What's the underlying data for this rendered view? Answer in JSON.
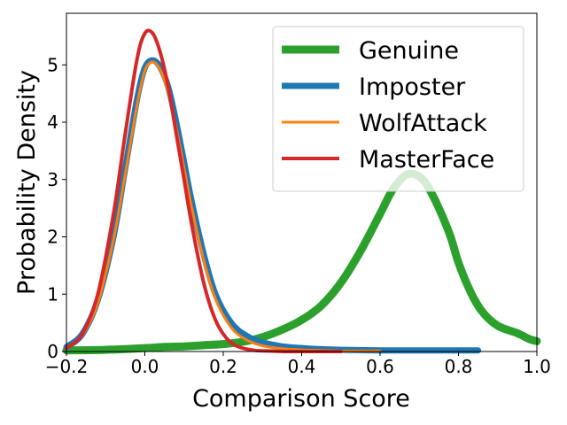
{
  "chart_data": {
    "type": "line",
    "title": "",
    "xlabel": "Comparison Score",
    "ylabel": "Probability Density",
    "xlim": [
      -0.2,
      1.0
    ],
    "ylim": [
      0,
      5.9
    ],
    "xticks": [
      -0.2,
      0.0,
      0.2,
      0.4,
      0.6,
      0.8,
      1.0
    ],
    "xtick_labels": [
      "−0.2",
      "0.0",
      "0.2",
      "0.4",
      "0.6",
      "0.8",
      "1.0"
    ],
    "yticks": [
      0,
      1,
      2,
      3,
      4,
      5
    ],
    "ytick_labels": [
      "0",
      "1",
      "2",
      "3",
      "4",
      "5"
    ],
    "grid": false,
    "legend_position": "top-right",
    "series": [
      {
        "name": "Genuine",
        "color": "#2ca02c",
        "x": [
          -0.2,
          -0.1,
          0.0,
          0.05,
          0.1,
          0.15,
          0.2,
          0.25,
          0.3,
          0.35,
          0.4,
          0.45,
          0.5,
          0.55,
          0.6,
          0.63,
          0.66,
          0.68,
          0.7,
          0.72,
          0.75,
          0.78,
          0.8,
          0.83,
          0.86,
          0.9,
          0.95,
          0.98,
          1.0
        ],
        "y": [
          0.02,
          0.03,
          0.06,
          0.08,
          0.09,
          0.11,
          0.13,
          0.17,
          0.25,
          0.38,
          0.55,
          0.8,
          1.2,
          1.75,
          2.4,
          2.8,
          3.05,
          3.1,
          3.05,
          2.9,
          2.5,
          2.0,
          1.55,
          1.05,
          0.7,
          0.45,
          0.32,
          0.22,
          0.18
        ]
      },
      {
        "name": "Imposter",
        "color": "#1f77b4",
        "x": [
          -0.2,
          -0.16,
          -0.12,
          -0.08,
          -0.05,
          -0.02,
          0.0,
          0.02,
          0.04,
          0.06,
          0.08,
          0.1,
          0.12,
          0.15,
          0.18,
          0.22,
          0.26,
          0.3,
          0.35,
          0.4,
          0.45,
          0.5,
          0.6,
          0.7,
          0.85
        ],
        "y": [
          0.08,
          0.3,
          0.9,
          2.0,
          3.2,
          4.4,
          4.95,
          5.08,
          4.95,
          4.6,
          4.0,
          3.3,
          2.6,
          1.7,
          1.0,
          0.5,
          0.27,
          0.16,
          0.09,
          0.06,
          0.04,
          0.03,
          0.02,
          0.02,
          0.02
        ]
      },
      {
        "name": "WolfAttack",
        "color": "#ff7f0e",
        "x": [
          -0.2,
          -0.16,
          -0.12,
          -0.08,
          -0.05,
          -0.02,
          0.0,
          0.02,
          0.04,
          0.06,
          0.08,
          0.1,
          0.12,
          0.15,
          0.18,
          0.22,
          0.26,
          0.3,
          0.35,
          0.4,
          0.45,
          0.5,
          0.55,
          0.6
        ],
        "y": [
          0.07,
          0.28,
          0.85,
          1.95,
          3.1,
          4.3,
          4.9,
          5.05,
          4.9,
          4.5,
          3.9,
          3.2,
          2.5,
          1.6,
          0.92,
          0.42,
          0.2,
          0.1,
          0.05,
          0.03,
          0.02,
          0.01,
          0.01,
          0.01
        ]
      },
      {
        "name": "MasterFace",
        "color": "#d62728",
        "x": [
          -0.2,
          -0.16,
          -0.12,
          -0.08,
          -0.05,
          -0.02,
          0.0,
          0.02,
          0.04,
          0.06,
          0.08,
          0.1,
          0.12,
          0.15,
          0.18,
          0.21,
          0.24,
          0.28,
          0.32,
          0.36,
          0.4,
          0.45,
          0.5
        ],
        "y": [
          0.06,
          0.3,
          1.0,
          2.4,
          3.8,
          5.1,
          5.55,
          5.55,
          5.2,
          4.6,
          3.8,
          3.0,
          2.2,
          1.2,
          0.55,
          0.22,
          0.08,
          0.02,
          0.01,
          0.0,
          0.0,
          0.0,
          0.0
        ]
      }
    ]
  }
}
